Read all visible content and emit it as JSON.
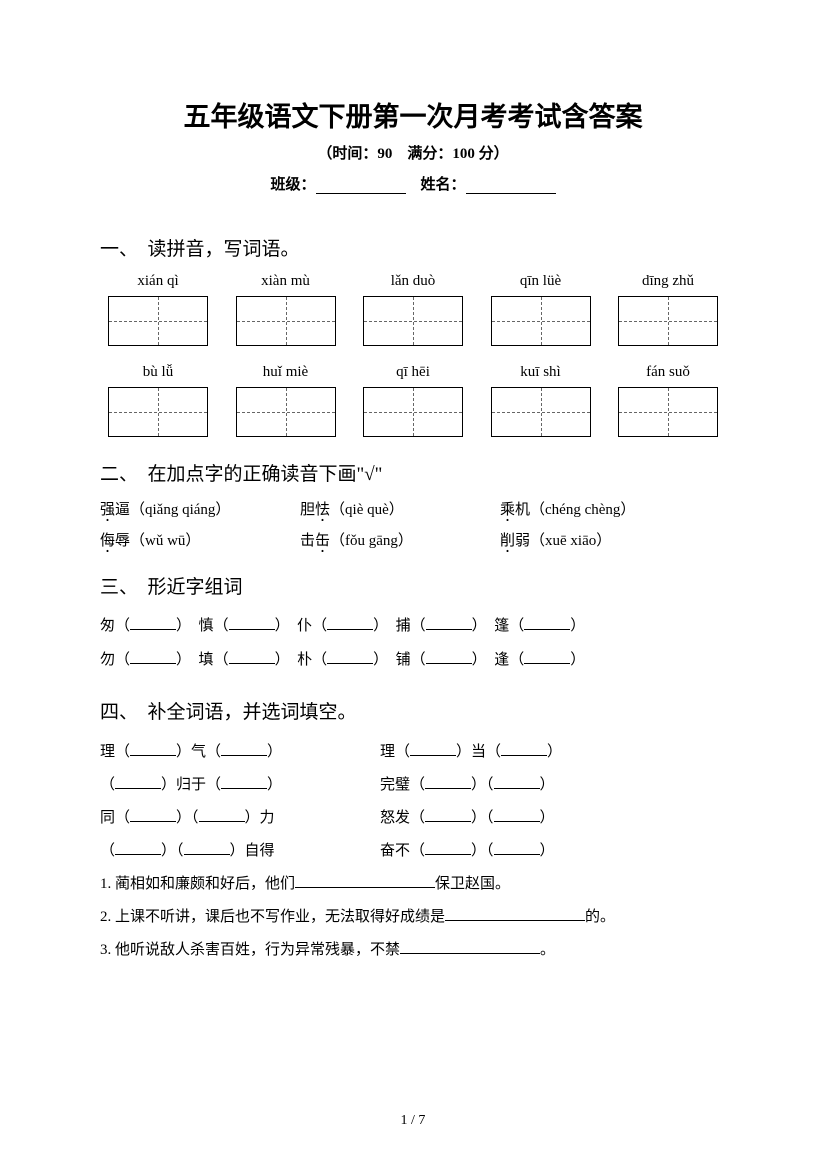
{
  "title": "五年级语文下册第一次月考考试含答案",
  "subtitle": "（时间：90　满分：100 分）",
  "info": {
    "class_label": "班级：",
    "name_label": "姓名："
  },
  "section1": {
    "title": "一、　读拼音，写词语。",
    "row1": [
      "xián qì",
      "xiàn mù",
      "lǎn duò",
      "qīn lüè",
      "dīng zhǔ"
    ],
    "row2": [
      "bù lǚ",
      "huǐ miè",
      "qī hēi",
      "kuī shì",
      "fán suǒ"
    ]
  },
  "section2": {
    "title": "二、　在加点字的正确读音下画\"√\"",
    "row1": [
      {
        "char": "强",
        "rest": "逼（qiǎng qiáng）"
      },
      {
        "char": "怯",
        "pre": "胆",
        "rest": "（qiè què）"
      },
      {
        "char": "乘",
        "rest": "机（chéng chèng）"
      }
    ],
    "row2": [
      {
        "char": "侮",
        "rest": "辱（wǔ wū）"
      },
      {
        "char": "缶",
        "pre": "击",
        "rest": "（fǒu gāng）"
      },
      {
        "char": "削",
        "rest": "弱（xuē xiāo）"
      }
    ]
  },
  "section3": {
    "title": "三、　形近字组词",
    "line1": {
      "a": "匆",
      "b": "慎",
      "c": "仆",
      "d": "捕",
      "e": "篷"
    },
    "line2": {
      "a": "勿",
      "b": "填",
      "c": "朴",
      "d": "铺",
      "e": "逢"
    }
  },
  "section4": {
    "title": "四、　补全词语，并选词填空。",
    "pairs": [
      {
        "left": "理（______）气（______）",
        "right": "理（______）当（______）"
      },
      {
        "left": "（______）归于（______）",
        "right": "完璧（______）（______）"
      },
      {
        "left": "同（______）（______）力",
        "right": "怒发（______）（______）"
      },
      {
        "left": "（______）（______）自得",
        "right": "奋不（______）（______）"
      }
    ],
    "sentences": [
      {
        "pre": "1. 蔺相如和廉颇和好后，他们",
        "post": "保卫赵国。"
      },
      {
        "pre": "2. 上课不听讲，课后也不写作业，无法取得好成绩是",
        "post": "的。"
      },
      {
        "pre": "3. 他听说敌人杀害百姓，行为异常残暴，不禁",
        "post": "。"
      }
    ]
  },
  "page_number": "1 / 7"
}
